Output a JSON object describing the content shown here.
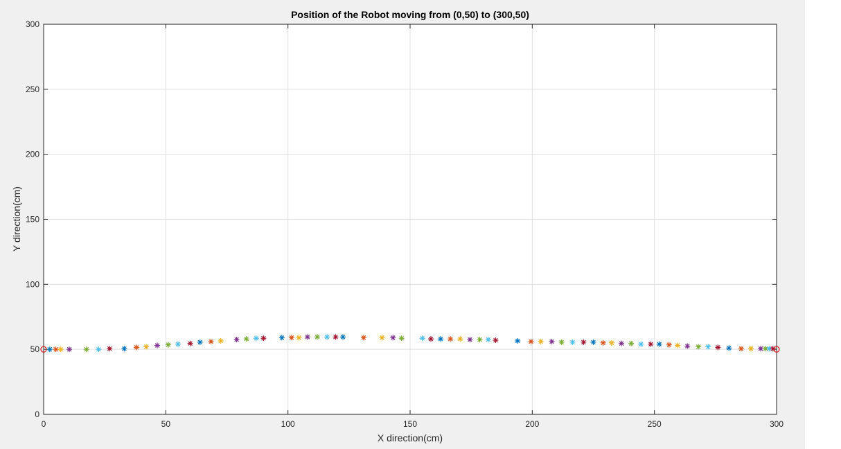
{
  "chart_data": {
    "type": "scatter",
    "title": "Position of the Robot moving from (0,50) to (300,50)",
    "xlabel": "X direction(cm)",
    "ylabel": "Y direction(cm)",
    "xlim": [
      0,
      300
    ],
    "ylim": [
      0,
      300
    ],
    "xticks": [
      "0",
      "50",
      "100",
      "150",
      "200",
      "250",
      "300"
    ],
    "yticks": [
      "0",
      "50",
      "100",
      "150",
      "200",
      "250",
      "300"
    ],
    "grid": true,
    "marker": "*",
    "colors": [
      "#0072bd",
      "#d95319",
      "#edb120",
      "#7e2f8e",
      "#77ac30",
      "#4dbeee",
      "#a2142f"
    ],
    "points": {
      "x": [
        2.5,
        5,
        7,
        10.5,
        17.5,
        22.5,
        27,
        33,
        38,
        42,
        46.5,
        51,
        55,
        60,
        64,
        68.5,
        72.5,
        79,
        83,
        87,
        90,
        97.5,
        101.5,
        104.5,
        108,
        112,
        116,
        119.5,
        122.5,
        131,
        138.5,
        143,
        146.5,
        155,
        158.5,
        162.5,
        166.5,
        170.5,
        174.5,
        178.5,
        182,
        185,
        194,
        199.5,
        203.5,
        208,
        212,
        216.5,
        221,
        225,
        229,
        232.5,
        236.5,
        240.5,
        244.5,
        248.5,
        252,
        256,
        259.5,
        263.5,
        268,
        272,
        276,
        280.5,
        285.5,
        289.5,
        293.5,
        295.5,
        297,
        298.5
      ],
      "y": [
        50,
        50,
        50,
        50,
        50,
        50,
        50.5,
        50.5,
        51.5,
        52,
        53,
        53.5,
        54,
        54.5,
        55.5,
        56,
        56.5,
        57.5,
        58,
        58.5,
        58.5,
        59,
        59,
        59,
        59.5,
        59.5,
        59.5,
        59.5,
        59.5,
        59,
        59,
        59,
        58.5,
        58.5,
        58,
        58,
        58,
        58,
        57.5,
        57.5,
        57.5,
        57,
        56.5,
        56,
        56,
        56,
        55.5,
        55.5,
        55.5,
        55.5,
        55,
        55,
        54.5,
        54.5,
        54,
        54,
        54,
        53.5,
        53,
        52.5,
        52,
        52,
        51.5,
        51,
        50.5,
        50.5,
        50.5,
        50.5,
        50.5,
        50.5
      ]
    },
    "start_point": {
      "x": 0,
      "y": 50,
      "marker": "o",
      "color": "#d62728"
    },
    "end_point": {
      "x": 300,
      "y": 50,
      "marker": "o",
      "color": "#d62728"
    }
  }
}
